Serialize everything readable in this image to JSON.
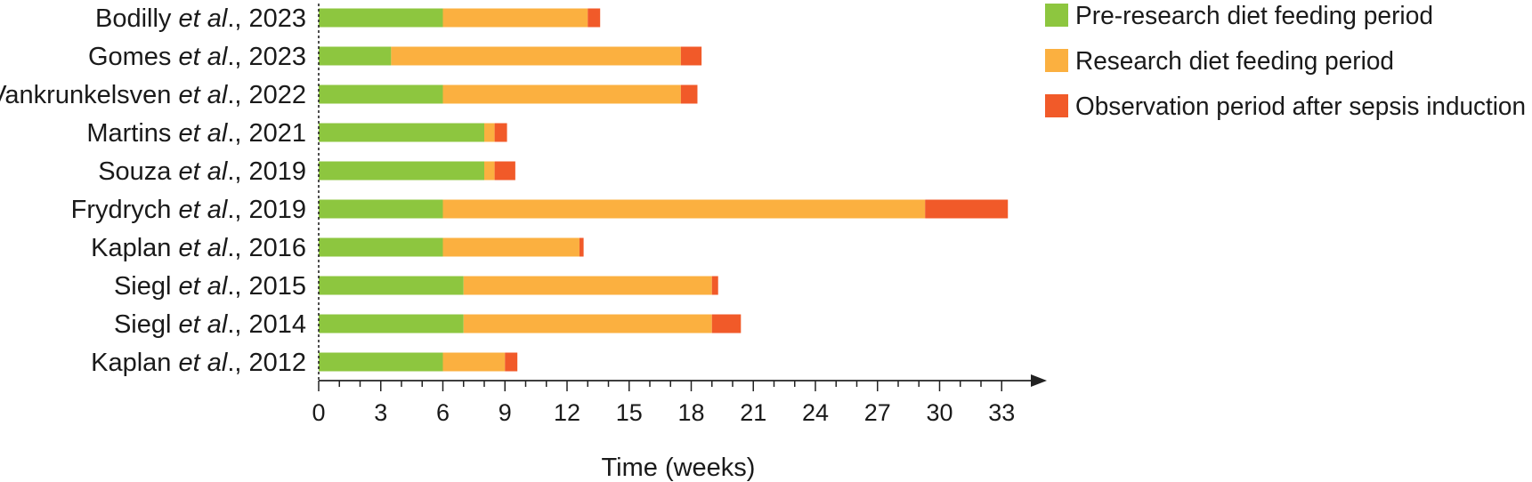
{
  "chart_data": {
    "type": "bar",
    "orientation": "horizontal",
    "stacked": true,
    "categories": [
      {
        "prefix": "Bodilly ",
        "etal": "et al",
        "suffix": "., 2023"
      },
      {
        "prefix": "Gomes ",
        "etal": "et al",
        "suffix": "., 2023"
      },
      {
        "prefix": "Vankrunkelsven ",
        "etal": "et al",
        "suffix": "., 2022"
      },
      {
        "prefix": "Martins ",
        "etal": "et al",
        "suffix": "., 2021"
      },
      {
        "prefix": "Souza ",
        "etal": "et al",
        "suffix": "., 2019"
      },
      {
        "prefix": "Frydrych ",
        "etal": "et al",
        "suffix": "., 2019"
      },
      {
        "prefix": "Kaplan ",
        "etal": "et al",
        "suffix": "., 2016"
      },
      {
        "prefix": "Siegl ",
        "etal": "et al",
        "suffix": "., 2015"
      },
      {
        "prefix": "Siegl ",
        "etal": "et al",
        "suffix": "., 2014"
      },
      {
        "prefix": "Kaplan ",
        "etal": "et al",
        "suffix": "., 2012"
      }
    ],
    "series": [
      {
        "name": "Pre-research diet feeding period",
        "color": "#8dc63f",
        "values": [
          6,
          3.5,
          6,
          8,
          8,
          6,
          6,
          7,
          7,
          6
        ]
      },
      {
        "name": "Research diet feeding period",
        "color": "#fbb040",
        "values": [
          7,
          14,
          11.5,
          0.5,
          0.5,
          23.3,
          6.6,
          12,
          12,
          3
        ]
      },
      {
        "name": "Observation period after sepsis induction",
        "color": "#f15a29",
        "values": [
          0.6,
          1,
          0.8,
          0.6,
          1,
          4,
          0.2,
          0.3,
          1.4,
          0.6
        ]
      }
    ],
    "xlabel": "Time (weeks)",
    "xticks": [
      "0",
      "3",
      "6",
      "9",
      "12",
      "15",
      "18",
      "21",
      "24",
      "27",
      "30",
      "33"
    ],
    "xlim": [
      0,
      34.5
    ],
    "grid": false,
    "legend_position": "top-right"
  }
}
